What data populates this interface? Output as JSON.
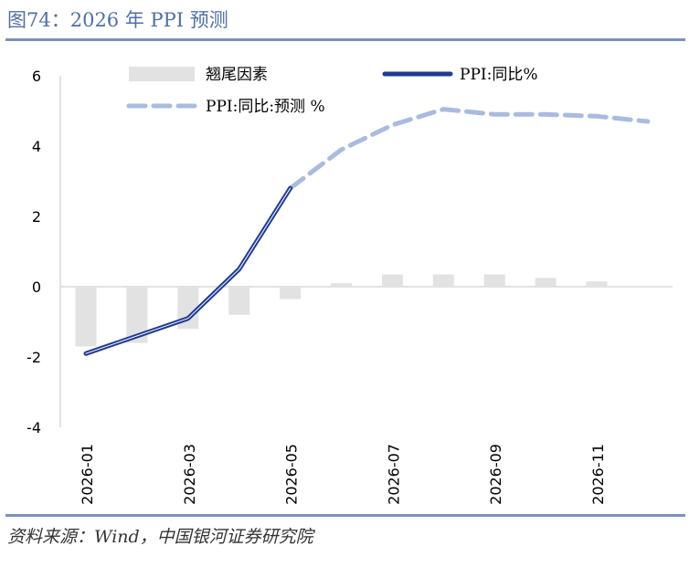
{
  "header": {
    "title": "图74：2026 年 PPI 预测"
  },
  "footer": {
    "source": "资料来源：Wind，中国银河证券研究院"
  },
  "chart_data": {
    "type": "bar",
    "categories": [
      "2026-01",
      "2026-02",
      "2026-03",
      "2026-04",
      "2026-05",
      "2026-06",
      "2026-07",
      "2026-08",
      "2026-09",
      "2026-10",
      "2026-11",
      "2026-12"
    ],
    "xtick_labels": [
      "2026-01",
      "2026-03",
      "2026-05",
      "2026-07",
      "2026-09",
      "2026-11"
    ],
    "ylim": [
      -4,
      6
    ],
    "yticks": [
      -4,
      -2,
      0,
      2,
      4,
      6
    ],
    "series": [
      {
        "name": "翘尾因素",
        "kind": "bar",
        "color": "#e2e2e2",
        "values": [
          -1.7,
          -1.6,
          -1.2,
          -0.8,
          -0.35,
          0.1,
          0.35,
          0.35,
          0.35,
          0.25,
          0.15,
          0.0
        ]
      },
      {
        "name": "PPI:同比%",
        "kind": "line",
        "color": "#1f3a93",
        "values": [
          -1.9,
          null,
          -0.9,
          0.5,
          2.8,
          null,
          null,
          null,
          null,
          null,
          null,
          null
        ]
      },
      {
        "name": "PPI:同比:预测 %",
        "kind": "dashed-line",
        "color": "#a9bbe0",
        "values": [
          null,
          null,
          null,
          null,
          2.8,
          3.9,
          4.6,
          5.05,
          4.9,
          4.9,
          4.85,
          4.7
        ]
      }
    ],
    "legend_position": "top",
    "grid": false
  }
}
